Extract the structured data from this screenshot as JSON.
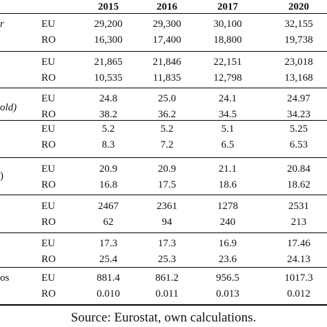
{
  "table": {
    "years": [
      "2015",
      "2016",
      "2017",
      "2020"
    ],
    "row_fragments": [
      {
        "text": "r",
        "italic": true
      },
      {
        "text": "",
        "italic": false
      },
      {
        "text": "old)",
        "italic": true
      },
      {
        "text": "",
        "italic": false
      },
      {
        "text": ")",
        "italic": false
      },
      {
        "text": "",
        "italic": false
      },
      {
        "text": "",
        "italic": false
      },
      {
        "text": "os",
        "italic": false
      }
    ],
    "groups": [
      {
        "rows": [
          {
            "region": "EU",
            "values": [
              "29,200",
              "29,300",
              "30,100",
              "32,155"
            ]
          },
          {
            "region": "RO",
            "values": [
              "16,300",
              "17,400",
              "18,800",
              "19,738"
            ]
          }
        ]
      },
      {
        "rows": [
          {
            "region": "EU",
            "values": [
              "21,865",
              "21,846",
              "22,151",
              "23,018"
            ]
          },
          {
            "region": "RO",
            "values": [
              "10,535",
              "11,835",
              "12,798",
              "13,168"
            ]
          }
        ]
      },
      {
        "rows": [
          {
            "region": "EU",
            "values": [
              "24.8",
              "25.0",
              "24.1",
              "24.97"
            ]
          },
          {
            "region": "RO",
            "values": [
              "38.2",
              "36.2",
              "34.5",
              "34.23"
            ]
          }
        ]
      },
      {
        "rows": [
          {
            "region": "EU",
            "values": [
              "5.2",
              "5.2",
              "5.1",
              "5.25"
            ]
          },
          {
            "region": "RO",
            "values": [
              "8.3",
              "7.2",
              "6.5",
              "6.53"
            ]
          }
        ]
      },
      {
        "rows": [
          {
            "region": "EU",
            "values": [
              "20.9",
              "20.9",
              "21.1",
              "20.84"
            ]
          },
          {
            "region": "RO",
            "values": [
              "16.8",
              "17.5",
              "18.6",
              "18.62"
            ]
          }
        ]
      },
      {
        "rows": [
          {
            "region": "EU",
            "values": [
              "2467",
              "2361",
              "1278",
              "2531"
            ]
          },
          {
            "region": "RO",
            "values": [
              "62",
              "94",
              "240",
              "213"
            ]
          }
        ]
      },
      {
        "rows": [
          {
            "region": "EU",
            "values": [
              "17.3",
              "17.3",
              "16.9",
              "17.46"
            ]
          },
          {
            "region": "RO",
            "values": [
              "25.4",
              "25.3",
              "23.6",
              "24.13"
            ]
          }
        ]
      },
      {
        "rows": [
          {
            "region": "EU",
            "values": [
              "881.4",
              "861.2",
              "956.5",
              "1017.3"
            ]
          },
          {
            "region": "RO",
            "values": [
              "0.010",
              "0.011",
              "0.013",
              "0.012"
            ]
          }
        ]
      }
    ]
  },
  "source_note": "Source: Eurostat, own calculations."
}
